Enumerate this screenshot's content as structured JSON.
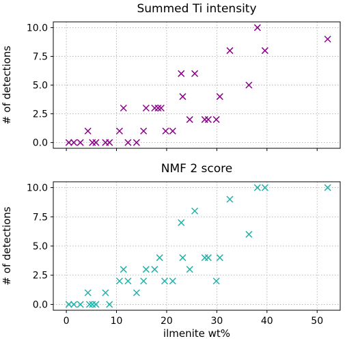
{
  "chart_data": [
    {
      "type": "scatter",
      "title": "Summed Ti intensity",
      "xlabel": "ilmenite wt%",
      "ylabel": "# of detections",
      "xlim": [
        -2.6,
        54.6
      ],
      "ylim": [
        -0.5,
        10.5
      ],
      "xticks": [
        0,
        10,
        20,
        30,
        40,
        50
      ],
      "xtick_labels": [
        "0",
        "10",
        "20",
        "30",
        "40",
        "50"
      ],
      "yticks": [
        0,
        2.5,
        5,
        7.5,
        10
      ],
      "ytick_labels": [
        "0.0",
        "2.5",
        "5.0",
        "7.5",
        "10.0"
      ],
      "show_xtick_labels": false,
      "grid": true,
      "grid_style": "dotted",
      "marker": "x",
      "color": "#8b008b",
      "points": [
        {
          "x": 0.5,
          "y": 0
        },
        {
          "x": 1.5,
          "y": 0
        },
        {
          "x": 2.8,
          "y": 0
        },
        {
          "x": 4.3,
          "y": 1
        },
        {
          "x": 5.2,
          "y": 0
        },
        {
          "x": 5.9,
          "y": 0
        },
        {
          "x": 7.8,
          "y": 0
        },
        {
          "x": 8.6,
          "y": 0
        },
        {
          "x": 10.6,
          "y": 1
        },
        {
          "x": 11.4,
          "y": 3
        },
        {
          "x": 12.3,
          "y": 0
        },
        {
          "x": 14.0,
          "y": 0
        },
        {
          "x": 15.4,
          "y": 1
        },
        {
          "x": 15.9,
          "y": 3
        },
        {
          "x": 17.6,
          "y": 3
        },
        {
          "x": 18.3,
          "y": 3
        },
        {
          "x": 18.9,
          "y": 3
        },
        {
          "x": 19.8,
          "y": 1
        },
        {
          "x": 21.2,
          "y": 1
        },
        {
          "x": 22.9,
          "y": 6
        },
        {
          "x": 23.2,
          "y": 4
        },
        {
          "x": 24.6,
          "y": 2
        },
        {
          "x": 25.6,
          "y": 6
        },
        {
          "x": 27.6,
          "y": 2
        },
        {
          "x": 28.3,
          "y": 2
        },
        {
          "x": 29.9,
          "y": 2
        },
        {
          "x": 30.6,
          "y": 4
        },
        {
          "x": 32.6,
          "y": 8
        },
        {
          "x": 36.4,
          "y": 5
        },
        {
          "x": 38.1,
          "y": 10
        },
        {
          "x": 39.6,
          "y": 8
        },
        {
          "x": 52.1,
          "y": 9
        }
      ]
    },
    {
      "type": "scatter",
      "title": "NMF 2 score",
      "xlabel": "ilmenite wt%",
      "ylabel": "# of detections",
      "xlim": [
        -2.6,
        54.6
      ],
      "ylim": [
        -0.5,
        10.5
      ],
      "xticks": [
        0,
        10,
        20,
        30,
        40,
        50
      ],
      "xtick_labels": [
        "0",
        "10",
        "20",
        "30",
        "40",
        "50"
      ],
      "yticks": [
        0,
        2.5,
        5,
        7.5,
        10
      ],
      "ytick_labels": [
        "0.0",
        "2.5",
        "5.0",
        "7.5",
        "10.0"
      ],
      "show_xtick_labels": true,
      "grid": true,
      "grid_style": "dotted",
      "marker": "x",
      "color": "#20b2aa",
      "points": [
        {
          "x": 0.5,
          "y": 0
        },
        {
          "x": 1.5,
          "y": 0
        },
        {
          "x": 2.8,
          "y": 0
        },
        {
          "x": 4.3,
          "y": 1
        },
        {
          "x": 4.6,
          "y": 0
        },
        {
          "x": 5.2,
          "y": 0
        },
        {
          "x": 5.9,
          "y": 0
        },
        {
          "x": 7.8,
          "y": 1
        },
        {
          "x": 8.6,
          "y": 0
        },
        {
          "x": 10.6,
          "y": 2
        },
        {
          "x": 11.4,
          "y": 3
        },
        {
          "x": 12.3,
          "y": 2
        },
        {
          "x": 14.0,
          "y": 1
        },
        {
          "x": 15.4,
          "y": 2
        },
        {
          "x": 15.9,
          "y": 3
        },
        {
          "x": 17.6,
          "y": 3
        },
        {
          "x": 18.6,
          "y": 4
        },
        {
          "x": 19.6,
          "y": 2
        },
        {
          "x": 21.2,
          "y": 2
        },
        {
          "x": 22.9,
          "y": 7
        },
        {
          "x": 23.2,
          "y": 4
        },
        {
          "x": 24.6,
          "y": 3
        },
        {
          "x": 25.6,
          "y": 8
        },
        {
          "x": 27.6,
          "y": 4
        },
        {
          "x": 28.3,
          "y": 4
        },
        {
          "x": 29.9,
          "y": 2
        },
        {
          "x": 30.6,
          "y": 4
        },
        {
          "x": 32.6,
          "y": 9
        },
        {
          "x": 36.4,
          "y": 6
        },
        {
          "x": 38.1,
          "y": 10
        },
        {
          "x": 39.6,
          "y": 10
        },
        {
          "x": 52.1,
          "y": 10
        }
      ]
    }
  ]
}
